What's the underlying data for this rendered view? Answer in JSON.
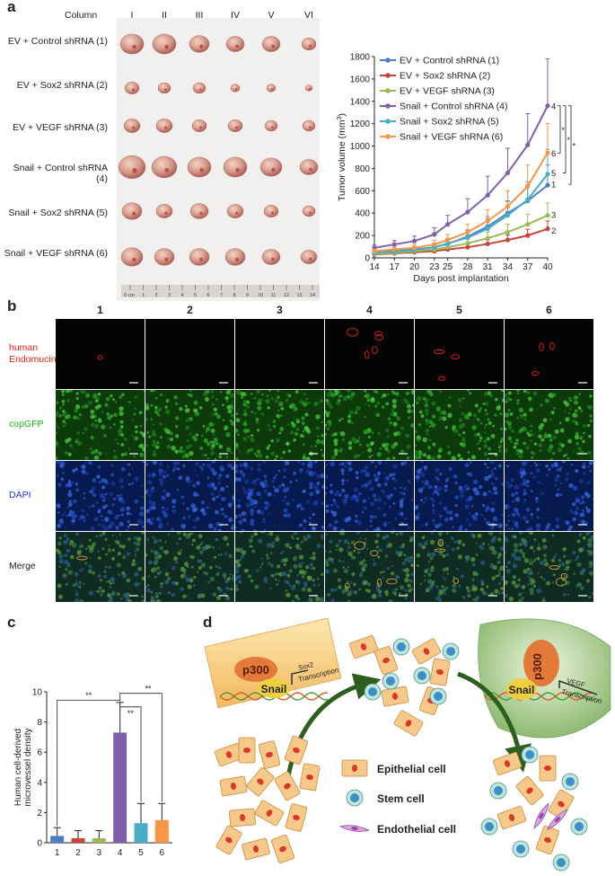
{
  "panel_letters": {
    "a": "a",
    "b": "b",
    "c": "c",
    "d": "d"
  },
  "panel_a": {
    "column_header": "Column",
    "columns": [
      "I",
      "II",
      "III",
      "IV",
      "V",
      "VI"
    ],
    "rows": [
      "EV + Control shRNA (1)",
      "EV + Sox2 shRNA (2)",
      "EV + VEGF shRNA (3)",
      "Snail + Control shRNA (4)",
      "Snail + Sox2 shRNA (5)",
      "Snail + VEGF shRNA (6)"
    ],
    "ruler_start": "0 cm"
  },
  "chart_data": [
    {
      "type": "line",
      "title": "",
      "xlabel": "Days post implantation",
      "ylabel": "Tumor volume (mm3)",
      "ylabel_main": "Tumor volume (mm",
      "ylabel_sup": "3",
      "ylabel_end": ")",
      "xlim": [
        14,
        40
      ],
      "ylim": [
        0,
        1800
      ],
      "x": [
        14,
        17,
        20,
        23,
        25,
        28,
        31,
        34,
        37,
        40
      ],
      "xticks": [
        "14",
        "17",
        "20",
        "23",
        "25",
        "28",
        "31",
        "34",
        "37",
        "40"
      ],
      "yticks": [
        "0",
        "200",
        "400",
        "600",
        "800",
        "1000",
        "1200",
        "1400",
        "1600",
        "1800"
      ],
      "legend_position": "top-left",
      "series": [
        {
          "name": "EV + Control shRNA (1)",
          "color": "#4a7fc1",
          "end_label": "1",
          "values": [
            50,
            60,
            75,
            95,
            125,
            190,
            280,
            400,
            510,
            650
          ],
          "errors": [
            15,
            20,
            25,
            35,
            45,
            60,
            90,
            110,
            140,
            180
          ]
        },
        {
          "name": "EV + Sox2 shRNA (2)",
          "color": "#c8453c",
          "end_label": "2",
          "values": [
            30,
            40,
            50,
            60,
            75,
            95,
            125,
            160,
            200,
            260
          ],
          "errors": [
            10,
            12,
            15,
            18,
            22,
            28,
            35,
            45,
            55,
            70
          ]
        },
        {
          "name": "EV + VEGF shRNA (3)",
          "color": "#9bbb59",
          "end_label": "3",
          "values": [
            35,
            45,
            60,
            75,
            95,
            130,
            175,
            230,
            300,
            380
          ],
          "errors": [
            10,
            15,
            20,
            25,
            30,
            40,
            55,
            70,
            90,
            110
          ]
        },
        {
          "name": "Snail + Control shRNA (4)",
          "color": "#7f5fa8",
          "end_label": "4",
          "values": [
            90,
            120,
            150,
            210,
            300,
            410,
            560,
            760,
            1010,
            1360
          ],
          "errors": [
            25,
            35,
            45,
            60,
            80,
            120,
            170,
            220,
            280,
            420
          ]
        },
        {
          "name": "Snail + Sox2 shRNA (5)",
          "color": "#4bacc6",
          "end_label": "5",
          "values": [
            45,
            55,
            70,
            95,
            130,
            180,
            260,
            380,
            520,
            750
          ],
          "errors": [
            15,
            18,
            22,
            30,
            45,
            60,
            90,
            120,
            160,
            220
          ]
        },
        {
          "name": "Snail + VEGF shRNA (6)",
          "color": "#f79646",
          "end_label": "6",
          "values": [
            60,
            75,
            90,
            120,
            160,
            230,
            330,
            460,
            640,
            940
          ],
          "errors": [
            18,
            22,
            28,
            38,
            50,
            70,
            100,
            140,
            190,
            260
          ]
        }
      ],
      "significance": [
        "*",
        "*",
        "*"
      ]
    },
    {
      "type": "bar",
      "title": "",
      "xlabel": "",
      "ylabel": "Human cell-derived microvessel density",
      "ylabel_line1": "Human cell-derived",
      "ylabel_line2": "microvessel density",
      "ylim": [
        0,
        10
      ],
      "yticks": [
        "0",
        "2",
        "4",
        "6",
        "8",
        "10"
      ],
      "categories": [
        "1",
        "2",
        "3",
        "4",
        "5",
        "6"
      ],
      "values": [
        0.45,
        0.3,
        0.3,
        7.3,
        1.3,
        1.5
      ],
      "errors": [
        0.55,
        0.5,
        0.5,
        2.0,
        1.3,
        1.1
      ],
      "colors": [
        "#4a7fc1",
        "#c8453c",
        "#9bbb59",
        "#7f5fa8",
        "#4bacc6",
        "#f79646"
      ],
      "significance": [
        "**",
        "**",
        "**"
      ]
    }
  ],
  "panel_b": {
    "columns": [
      "1",
      "2",
      "3",
      "4",
      "5",
      "6"
    ],
    "rows": [
      {
        "line1": "human",
        "line2": "Endomucin",
        "color": "#e8201d"
      },
      {
        "line1": "copGFP",
        "line2": "",
        "color": "#19b51d"
      },
      {
        "line1": "DAPI",
        "line2": "",
        "color": "#2136d6"
      },
      {
        "line1": "Merge",
        "line2": "",
        "color": "#222222"
      }
    ]
  },
  "panel_d": {
    "left_box": {
      "p300": "p300",
      "snail": "Snail",
      "target": "Sox2",
      "transcription": "Transcription"
    },
    "right_box": {
      "p300": "p300",
      "snail": "Snail",
      "target": "VEGF",
      "transcription": "Transcription"
    },
    "legend": [
      "Epithelial cell",
      "Stem cell",
      "Endothelial cell"
    ]
  }
}
